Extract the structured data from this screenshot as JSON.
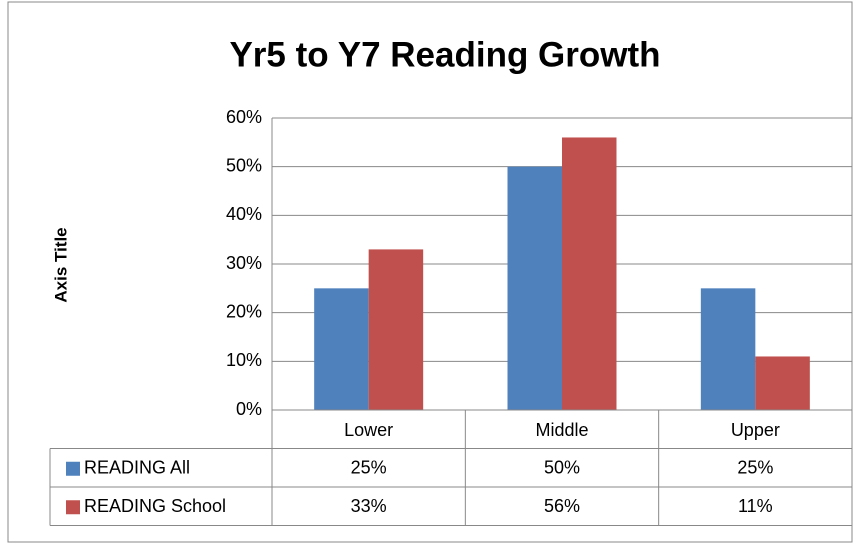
{
  "chart_data": {
    "type": "bar",
    "title": "Yr5 to Y7 Reading Growth",
    "y_label": "Axis Title",
    "categories": [
      "Lower",
      "Middle",
      "Upper"
    ],
    "series": [
      {
        "name": "READING All",
        "color": "#4f81bd",
        "values": [
          25,
          50,
          25
        ],
        "value_labels": [
          "25%",
          "50%",
          "25%"
        ]
      },
      {
        "name": "READING School",
        "color": "#c0504d",
        "values": [
          33,
          56,
          11
        ],
        "value_labels": [
          "33%",
          "56%",
          "11%"
        ]
      }
    ],
    "ylim": [
      0,
      60
    ],
    "yticks": [
      {
        "value": 0,
        "label": "0%"
      },
      {
        "value": 10,
        "label": "10%"
      },
      {
        "value": 20,
        "label": "20%"
      },
      {
        "value": 30,
        "label": "30%"
      },
      {
        "value": 40,
        "label": "40%"
      },
      {
        "value": 50,
        "label": "50%"
      },
      {
        "value": 60,
        "label": "60%"
      }
    ],
    "grid": true
  }
}
